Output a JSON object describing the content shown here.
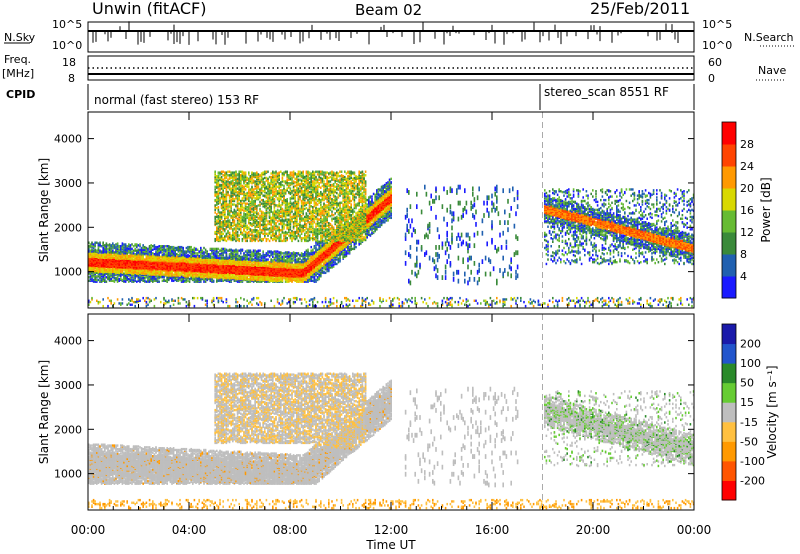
{
  "header": {
    "station": "Unwin (fitACF)",
    "beam": "Beam 02",
    "date": "25/Feb/2011"
  },
  "sky_panel": {
    "label_left": "N.Sky",
    "ticks_left": [
      "10^5",
      "10^0"
    ],
    "ticks_right": [
      "10^5",
      "10^0"
    ],
    "label_right": "N.Search"
  },
  "freq_panel": {
    "label_left_1": "Freq.",
    "label_left_2": "[MHz]",
    "ticks_left": [
      "18",
      "8"
    ],
    "ticks_right": [
      "60",
      "0"
    ],
    "label_right": "Nave"
  },
  "cpid_panel": {
    "label": "CPID",
    "mode1": "normal (fast stereo) 153 RF",
    "mode2": "stereo_scan 8551 RF"
  },
  "colors": {
    "power": [
      "#1a1aff",
      "#2060b0",
      "#3a8a3a",
      "#66bb33",
      "#d8d800",
      "#ff9900",
      "#ff4400",
      "#ff0000"
    ],
    "velocity": [
      "#ff0000",
      "#ff5500",
      "#ff9900",
      "#ffc040",
      "#bebebe",
      "#66cc33",
      "#2a8a2a",
      "#2255cc",
      "#1a1aaa"
    ]
  },
  "chart_data": [
    {
      "type": "heatmap",
      "title": "",
      "xlabel": "",
      "ylabel": "Slant Range [km]",
      "x_ticks": [
        "00:00",
        "04:00",
        "08:00",
        "12:00",
        "16:00",
        "20:00",
        "00:00"
      ],
      "y_ticks": [
        "1000",
        "2000",
        "3000",
        "4000"
      ],
      "xlim": [
        0,
        24
      ],
      "ylim": [
        180,
        4600
      ],
      "colorbar_label": "Power [dB]",
      "colorbar_ticks": [
        "4",
        "8",
        "12",
        "16",
        "20",
        "24",
        "28"
      ],
      "vertical_marker_hour": 18
    },
    {
      "type": "heatmap",
      "title": "",
      "xlabel": "Time UT",
      "ylabel": "Slant Range [km]",
      "x_ticks": [
        "00:00",
        "04:00",
        "08:00",
        "12:00",
        "16:00",
        "20:00",
        "00:00"
      ],
      "y_ticks": [
        "1000",
        "2000",
        "3000",
        "4000"
      ],
      "xlim": [
        0,
        24
      ],
      "ylim": [
        180,
        4600
      ],
      "colorbar_label": "Velocity [m s⁻¹]",
      "colorbar_ticks": [
        "200",
        "100",
        "50",
        "15",
        "-15",
        "-50",
        "-100",
        "-200"
      ],
      "vertical_marker_hour": 18
    }
  ]
}
